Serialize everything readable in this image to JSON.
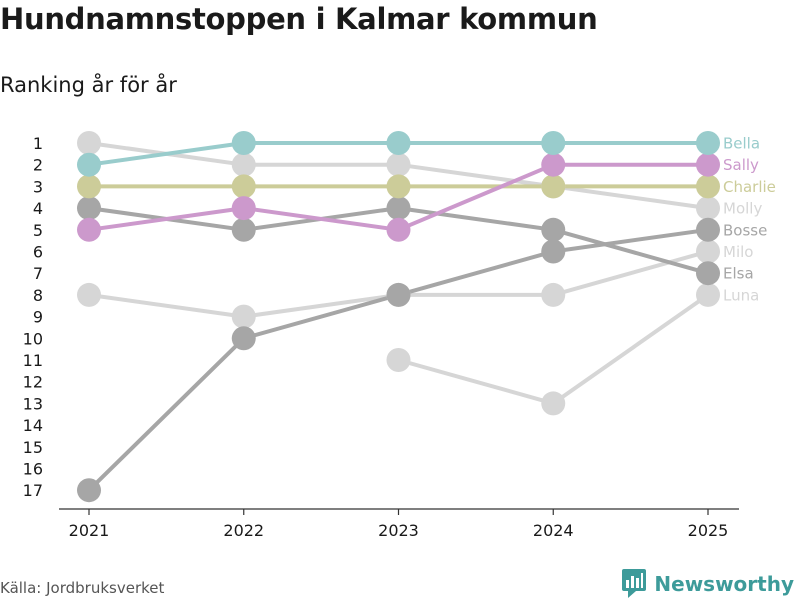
{
  "title": "Hundnamnstoppen i Kalmar kommun",
  "subtitle": "Ranking år för år",
  "source": "Källa: Jordbruksverket",
  "brand": "Newsworthy",
  "colors": {
    "teal": "#99cccc",
    "pink": "#cc99cc",
    "olive": "#cccc99",
    "grey": "#a6a6a6",
    "lightgrey": "#d6d6d6",
    "brand": "#3d9b9a"
  },
  "chart_data": {
    "type": "line",
    "title": "Hundnamnstoppen i Kalmar kommun",
    "subtitle": "Ranking år för år",
    "x": [
      "2021",
      "2022",
      "2023",
      "2024",
      "2025"
    ],
    "yticks": [
      "1",
      "2",
      "3",
      "4",
      "5",
      "6",
      "7",
      "8",
      "9",
      "10",
      "11",
      "12",
      "13",
      "14",
      "15",
      "16",
      "17"
    ],
    "ylim": [
      1,
      17
    ],
    "y_inverted": true,
    "series": [
      {
        "name": "Luna",
        "color": "#d6d6d6",
        "values": [
          null,
          null,
          11,
          13,
          8
        ]
      },
      {
        "name": "Milo",
        "color": "#d6d6d6",
        "values": [
          8,
          9,
          8,
          8,
          6
        ]
      },
      {
        "name": "Molly",
        "color": "#d6d6d6",
        "values": [
          1,
          2,
          2,
          3,
          4
        ]
      },
      {
        "name": "Elsa",
        "color": "#a6a6a6",
        "values": [
          4,
          5,
          4,
          5,
          7
        ]
      },
      {
        "name": "Bosse",
        "color": "#a6a6a6",
        "values": [
          17,
          10,
          8,
          6,
          5
        ]
      },
      {
        "name": "Charlie",
        "color": "#cccc99",
        "values": [
          3,
          3,
          3,
          3,
          3
        ]
      },
      {
        "name": "Sally",
        "color": "#cc99cc",
        "values": [
          5,
          4,
          5,
          2,
          2
        ]
      },
      {
        "name": "Bella",
        "color": "#99cccc",
        "values": [
          2,
          1,
          1,
          1,
          1
        ]
      }
    ]
  }
}
